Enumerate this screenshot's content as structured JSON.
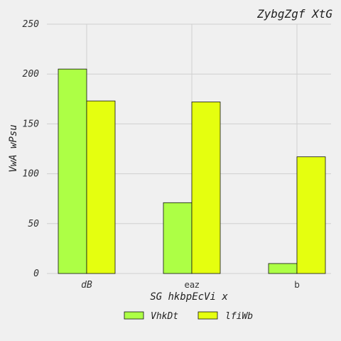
{
  "chart_data": {
    "type": "bar",
    "title": "ZybgZgf XtG",
    "xlabel": "SG hkbpEcVi x",
    "ylabel": "VwA wPsu",
    "categories": [
      "dB",
      "eaz",
      "b"
    ],
    "category_italic": [
      true,
      false,
      false
    ],
    "series": [
      {
        "name": "VhkDt",
        "values": [
          205,
          71,
          10
        ],
        "color": "#adff45"
      },
      {
        "name": "lfiWb",
        "values": [
          173,
          172,
          117
        ],
        "color": "#e5ff0f"
      }
    ],
    "ylim": [
      0,
      250
    ],
    "yticks": [
      0,
      50,
      100,
      150,
      200,
      250
    ],
    "grid": true,
    "legend_position": "bottom-center",
    "background": "#f0f0f0"
  }
}
